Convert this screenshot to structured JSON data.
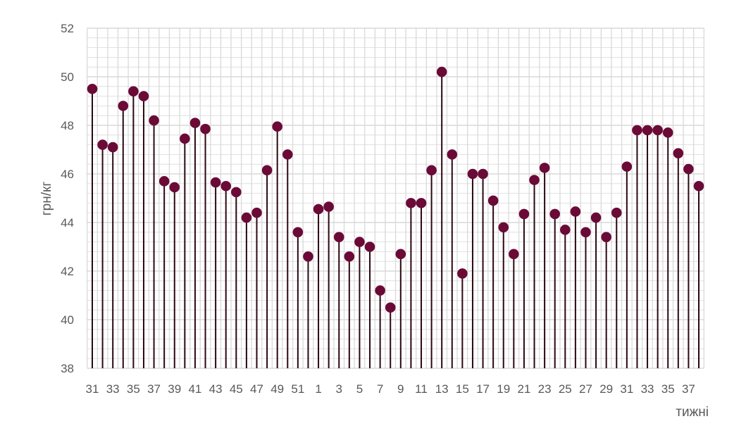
{
  "chart_data": {
    "type": "lollipop",
    "xlabel": "тижні",
    "ylabel": "грн/кг",
    "ylim": [
      38,
      52
    ],
    "y_major_step": 2,
    "y_minor_step": 0.4,
    "grid": true,
    "colors": {
      "marker": "#6b0a36",
      "stem": "#2a0812",
      "grid": "#d9d9d9",
      "text": "#595959"
    },
    "categories": [
      31,
      32,
      33,
      34,
      35,
      36,
      37,
      38,
      39,
      40,
      41,
      42,
      43,
      44,
      45,
      46,
      47,
      48,
      49,
      50,
      51,
      52,
      1,
      2,
      3,
      4,
      5,
      6,
      7,
      8,
      9,
      10,
      11,
      12,
      13,
      14,
      15,
      16,
      17,
      18,
      19,
      20,
      21,
      22,
      23,
      24,
      25,
      26,
      27,
      28,
      29,
      30,
      31,
      32,
      33,
      34,
      35,
      36,
      37,
      38
    ],
    "values": [
      49.5,
      47.2,
      47.1,
      48.8,
      49.4,
      49.2,
      48.2,
      45.7,
      45.45,
      47.45,
      48.1,
      47.85,
      45.65,
      45.5,
      45.25,
      44.2,
      44.4,
      46.15,
      47.95,
      46.8,
      43.6,
      42.6,
      44.55,
      44.65,
      43.4,
      42.6,
      43.2,
      43.0,
      41.2,
      40.5,
      42.7,
      44.8,
      44.8,
      46.15,
      50.2,
      46.8,
      41.9,
      46.0,
      46.0,
      44.9,
      43.8,
      42.7,
      44.35,
      45.75,
      46.25,
      44.35,
      43.7,
      44.45,
      43.6,
      44.2,
      43.4,
      44.4,
      46.3,
      47.8,
      47.8,
      47.8,
      47.7,
      46.85,
      46.2,
      45.5
    ],
    "ytick_labels": [
      "38",
      "40",
      "42",
      "44",
      "46",
      "48",
      "50",
      "52"
    ],
    "xtick_labels": [
      "31",
      "33",
      "35",
      "37",
      "39",
      "41",
      "43",
      "45",
      "47",
      "49",
      "51",
      "1",
      "3",
      "5",
      "7",
      "9",
      "11",
      "13",
      "15",
      "17",
      "19",
      "21",
      "23",
      "25",
      "27",
      "29",
      "31",
      "33",
      "35",
      "37"
    ]
  }
}
